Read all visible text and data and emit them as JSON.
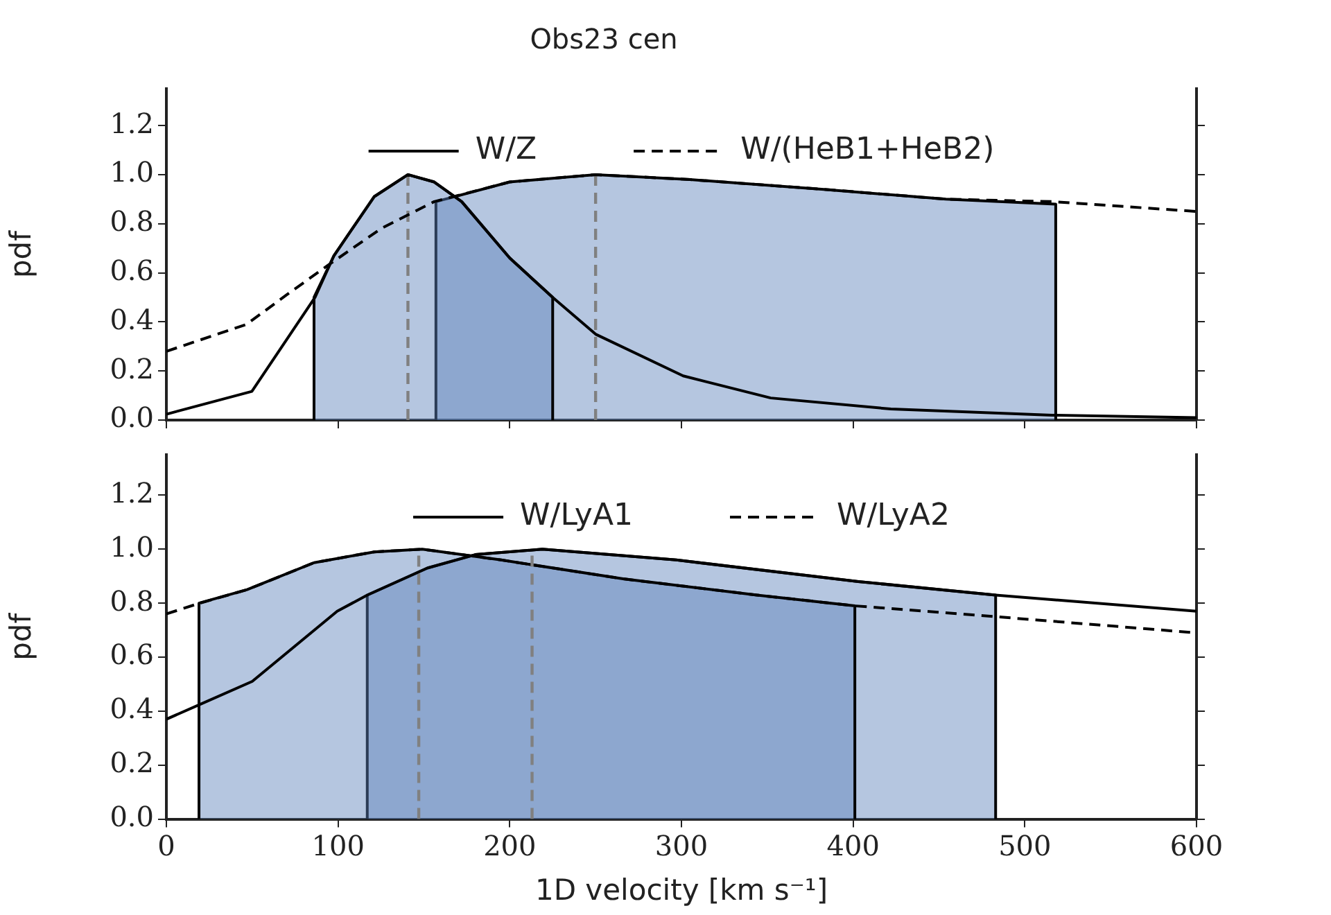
{
  "chart_data": [
    {
      "type": "line",
      "title": "Obs23 cen",
      "ylabel": "pdf",
      "xlim": [
        0,
        600
      ],
      "xticks": [
        0,
        100,
        200,
        300,
        400,
        500,
        600
      ],
      "ylim": [
        0,
        1.35
      ],
      "yticks": [
        {
          "value": 0,
          "label": "0.0"
        },
        {
          "value": 0.2,
          "label": "0.2"
        },
        {
          "value": 0.4,
          "label": "0.4"
        },
        {
          "value": 0.6,
          "label": "0.6"
        },
        {
          "value": 0.8,
          "label": "0.8"
        },
        {
          "value": 1,
          "label": "1.0"
        },
        {
          "value": 1.2,
          "label": "1.2"
        }
      ],
      "legend": "top",
      "tick_labels": "y",
      "series": [
        {
          "type": "area",
          "color": "#b5c6e0",
          "x": [
            86,
            86,
            97.6,
            121,
            140.7,
            156,
            172,
            200,
            225,
            225
          ],
          "values": [
            0,
            0.5,
            0.67,
            0.91,
            1.0,
            0.97,
            0.89,
            0.66,
            0.5,
            0
          ]
        },
        {
          "type": "area",
          "color": "#b5c6e0",
          "x": [
            157,
            157,
            200,
            250,
            305,
            383,
            454,
            518,
            518
          ],
          "values": [
            0,
            0.89,
            0.97,
            1.0,
            0.98,
            0.94,
            0.9,
            0.88,
            0
          ]
        },
        {
          "type": "line",
          "color": "#808080",
          "line_style": "dashed",
          "x": [
            140.7,
            140.7
          ],
          "values": [
            0,
            1.0
          ]
        },
        {
          "type": "line",
          "color": "#808080",
          "line_style": "dashed",
          "x": [
            250,
            250
          ],
          "values": [
            0,
            1.0
          ]
        },
        {
          "name": "W/Z",
          "type": "line",
          "color": "#000000",
          "line_style": "solid",
          "x": [
            0,
            49.8,
            86.6,
            97.6,
            121,
            140.7,
            156,
            172,
            200,
            225,
            250,
            301,
            352,
            422,
            516,
            600
          ],
          "values": [
            0.024,
            0.117,
            0.5,
            0.67,
            0.91,
            1.0,
            0.97,
            0.89,
            0.66,
            0.5,
            0.35,
            0.18,
            0.09,
            0.045,
            0.02,
            0.01
          ]
        },
        {
          "name": "W/(HeB1+HeB2)",
          "type": "line",
          "color": "#000000",
          "line_style": "dashed",
          "x": [
            0,
            46.7,
            70,
            94,
            125,
            156,
            200,
            250,
            305,
            383,
            454,
            516,
            600
          ],
          "values": [
            0.28,
            0.39,
            0.51,
            0.63,
            0.78,
            0.89,
            0.97,
            1.0,
            0.98,
            0.94,
            0.9,
            0.89,
            0.85
          ]
        }
      ]
    },
    {
      "type": "line",
      "xlabel": "1D velocity [km s⁻¹]",
      "ylabel": "pdf",
      "xlim": [
        0,
        600
      ],
      "xticks": [
        0,
        100,
        200,
        300,
        400,
        500,
        600
      ],
      "ylim": [
        0,
        1.35
      ],
      "yticks": [
        {
          "value": 0,
          "label": "0.0"
        },
        {
          "value": 0.2,
          "label": "0.2"
        },
        {
          "value": 0.4,
          "label": "0.4"
        },
        {
          "value": 0.6,
          "label": "0.6"
        },
        {
          "value": 0.8,
          "label": "0.8"
        },
        {
          "value": 1,
          "label": "1.0"
        },
        {
          "value": 1.2,
          "label": "1.2"
        }
      ],
      "legend": "top",
      "series": [
        {
          "type": "area",
          "color": "#b5c6e0",
          "x": [
            19,
            19,
            47,
            86,
            121,
            149,
            195,
            266,
            344,
            401,
            401
          ],
          "values": [
            0,
            0.8,
            0.85,
            0.95,
            0.99,
            1.0,
            0.96,
            0.89,
            0.83,
            0.79,
            0
          ]
        },
        {
          "type": "area",
          "color": "#b5c6e0",
          "x": [
            117,
            117,
            152,
            180,
            219,
            297,
            403,
            483,
            483
          ],
          "values": [
            0,
            0.83,
            0.93,
            0.98,
            1.0,
            0.96,
            0.88,
            0.83,
            0
          ]
        },
        {
          "type": "line",
          "color": "#808080",
          "line_style": "dashed",
          "x": [
            147,
            147
          ],
          "values": [
            0,
            1.0
          ]
        },
        {
          "type": "line",
          "color": "#808080",
          "line_style": "dashed",
          "x": [
            213,
            213
          ],
          "values": [
            0,
            1.0
          ]
        },
        {
          "name": "W/LyA1",
          "type": "line",
          "color": "#000000",
          "line_style": "solid",
          "x": [
            0,
            50,
            99.5,
            117,
            152,
            180,
            219,
            297,
            403,
            483,
            600
          ],
          "values": [
            0.37,
            0.51,
            0.77,
            0.83,
            0.93,
            0.98,
            1.0,
            0.96,
            0.88,
            0.83,
            0.77
          ]
        },
        {
          "name": "W/LyA2",
          "type": "line",
          "color": "#000000",
          "line_style": "dashed",
          "x": [
            0,
            19.4,
            47,
            86,
            121,
            149,
            195,
            266,
            344,
            401,
            483,
            600
          ],
          "values": [
            0.76,
            0.8,
            0.85,
            0.95,
            0.99,
            1.0,
            0.96,
            0.89,
            0.83,
            0.79,
            0.75,
            0.69
          ]
        }
      ]
    }
  ]
}
